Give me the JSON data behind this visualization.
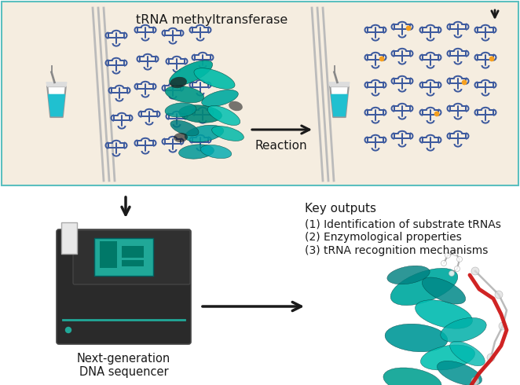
{
  "background_top": "#f5ede0",
  "background_bottom": "#ffffff",
  "border_color": "#5bbfbf",
  "tRNA_color": "#3d5a9e",
  "tRNA_modified_color": "#f5a020",
  "tube_liquid_color": "#20c0d0",
  "arrow_color": "#1a1a1a",
  "text_color": "#1a1a1a",
  "title_text": "tRNA methyltransferase",
  "reaction_text": "Reaction",
  "key_outputs_title": "Key outputs",
  "key_outputs_list": [
    "(1) Identification of substrate tRNAs",
    "(2) Enzymological properties",
    "(3) tRNA recognition mechanisms"
  ],
  "sequencer_label": "Next-generation\nDNA sequencer",
  "fig_width": 6.62,
  "fig_height": 4.9,
  "dpi": 100
}
